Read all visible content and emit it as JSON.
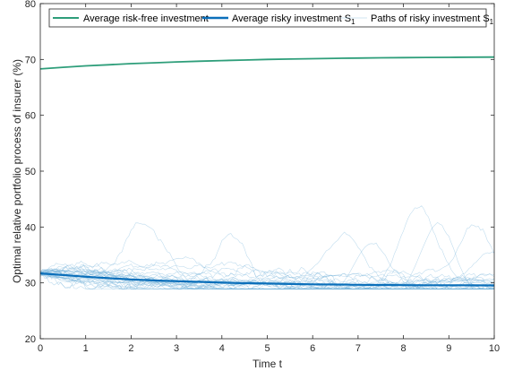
{
  "chart_data": {
    "type": "line",
    "title": "",
    "xlabel": "Time t",
    "ylabel": "Optimal relative portfolio process of insurer (%)",
    "xlim": [
      0,
      10
    ],
    "ylim": [
      20,
      80
    ],
    "xticks": [
      "0",
      "1",
      "2",
      "3",
      "4",
      "5",
      "6",
      "7",
      "8",
      "9",
      "10"
    ],
    "yticks": [
      "20",
      "30",
      "40",
      "50",
      "60",
      "70",
      "80"
    ],
    "grid": false,
    "legend_position": "top",
    "legend": {
      "riskfree": "Average risk-free investment",
      "risky_main": "Average risky investment S",
      "risky_sub": "1",
      "paths_main": "Paths of risky investment S",
      "paths_sub": "1"
    },
    "colors": {
      "riskfree": "#2e9e7a",
      "risky": "#0b6fba",
      "paths": "#6aaed6"
    },
    "series": [
      {
        "name": "Average risk-free investment",
        "x": [
          0,
          0.5,
          1,
          1.5,
          2,
          2.5,
          3,
          3.5,
          4,
          4.5,
          5,
          5.5,
          6,
          6.5,
          7,
          7.5,
          8,
          8.5,
          9,
          9.5,
          10
        ],
        "values": [
          68.3,
          68.6,
          68.85,
          69.05,
          69.25,
          69.4,
          69.55,
          69.68,
          69.8,
          69.9,
          70.0,
          70.07,
          70.14,
          70.2,
          70.25,
          70.3,
          70.33,
          70.36,
          70.38,
          70.4,
          70.42
        ]
      },
      {
        "name": "Average risky investment S1",
        "x": [
          0,
          0.5,
          1,
          1.5,
          2,
          2.5,
          3,
          3.5,
          4,
          4.5,
          5,
          5.5,
          6,
          6.5,
          7,
          7.5,
          8,
          8.5,
          9,
          9.5,
          10
        ],
        "values": [
          31.7,
          31.4,
          31.1,
          30.85,
          30.6,
          30.45,
          30.3,
          30.18,
          30.05,
          29.95,
          29.88,
          29.8,
          29.74,
          29.7,
          29.66,
          29.62,
          29.6,
          29.58,
          29.57,
          29.56,
          29.55
        ]
      }
    ],
    "paths": {
      "name": "Paths of risky investment S1",
      "count": 30,
      "start": 31.7,
      "notable_peaks": [
        {
          "x": 2.25,
          "y": 41.0
        },
        {
          "x": 4.2,
          "y": 40.8
        },
        {
          "x": 6.7,
          "y": 40.5
        },
        {
          "x": 7.3,
          "y": 41.0
        },
        {
          "x": 8.3,
          "y": 45.5
        },
        {
          "x": 8.75,
          "y": 44.5
        },
        {
          "x": 9.6,
          "y": 41.5
        },
        {
          "x": 9.95,
          "y": 37.5
        }
      ]
    }
  }
}
